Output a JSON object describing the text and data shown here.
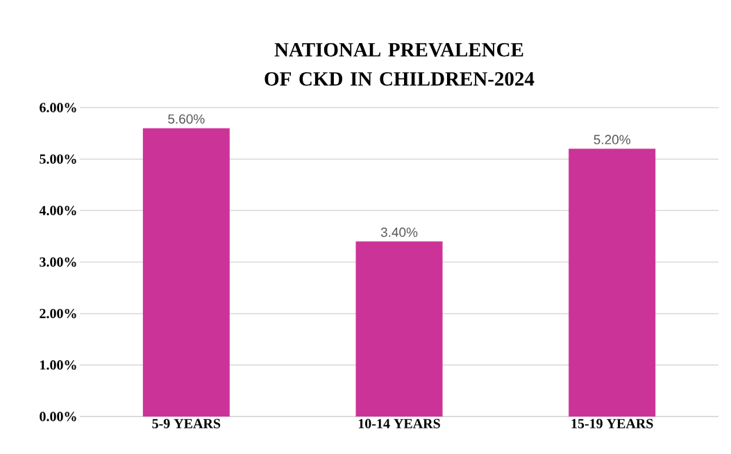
{
  "chart_data": {
    "type": "bar",
    "title": "NATIONAL  PREVALENCE  OF CKD IN CHILDREN-2024",
    "categories": [
      "5-9 YEARS",
      "10-14 YEARS",
      "15-19 YEARS"
    ],
    "values": [
      5.6,
      3.4,
      5.2
    ],
    "color": "#cc3399",
    "value_labels": [
      "5.60%",
      "3.40%",
      "5.20%"
    ],
    "ylim": [
      0,
      6
    ],
    "yticks": [
      {
        "value": 0,
        "label": "0.00%"
      },
      {
        "value": 1,
        "label": "1.00%"
      },
      {
        "value": 2,
        "label": "2.00%"
      },
      {
        "value": 3,
        "label": "3.00%"
      },
      {
        "value": 4,
        "label": "4.00%"
      },
      {
        "value": 5,
        "label": "5.00%"
      },
      {
        "value": 6,
        "label": "6.00%"
      }
    ],
    "grid": "y"
  }
}
